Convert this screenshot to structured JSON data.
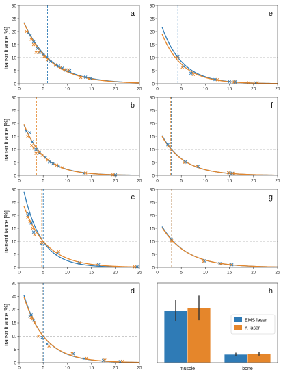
{
  "colors": {
    "ems": "#2f7bb6",
    "k": "#e5862b",
    "ref": "#aaaaaa",
    "err": "#333333"
  },
  "ylabel": "transmittance [%]",
  "chart_data": [
    {
      "panel": "a",
      "type": "scatter",
      "xlim": [
        0,
        25
      ],
      "ylim": [
        0,
        30
      ],
      "xticks": [
        0,
        5,
        10,
        15,
        20,
        25
      ],
      "yticks": [
        0,
        5,
        10,
        15,
        20,
        25,
        30
      ],
      "ref_y": 10,
      "series": [
        {
          "name": "EMS laser",
          "fit": {
            "a": 28,
            "k": 0.176
          },
          "vline": 5.9,
          "points": [
            [
              1.8,
              19.5
            ],
            [
              2.3,
              18.5
            ],
            [
              3,
              16
            ],
            [
              3.8,
              13.5
            ],
            [
              4.3,
              12
            ],
            [
              5,
              11
            ],
            [
              5.8,
              10.2
            ],
            [
              6.5,
              8.5
            ],
            [
              7.6,
              7
            ],
            [
              8.2,
              6.7
            ],
            [
              9,
              6
            ],
            [
              9.7,
              5.2
            ],
            [
              10.5,
              5
            ],
            [
              13.8,
              2.5
            ],
            [
              14.8,
              2
            ]
          ]
        },
        {
          "name": "K-laser",
          "fit": {
            "a": 28,
            "k": 0.182
          },
          "vline": 5.6,
          "points": [
            [
              1.5,
              20
            ],
            [
              2.5,
              17
            ],
            [
              3,
              15
            ],
            [
              3.5,
              12
            ],
            [
              4,
              12
            ],
            [
              5.2,
              10.5
            ],
            [
              6,
              9.2
            ],
            [
              7.5,
              7.2
            ],
            [
              8.5,
              6
            ],
            [
              9.5,
              5.5
            ],
            [
              10.2,
              5.3
            ],
            [
              12.8,
              2.4
            ],
            [
              14.5,
              1.8
            ]
          ]
        }
      ]
    },
    {
      "panel": "e",
      "type": "scatter",
      "xlim": [
        0,
        25
      ],
      "ylim": [
        0,
        30
      ],
      "xticks": [
        0,
        5,
        10,
        15,
        20,
        25
      ],
      "yticks": [
        0,
        5,
        10,
        15,
        20,
        25,
        30
      ],
      "ref_y": 10,
      "series": [
        {
          "name": "EMS laser",
          "fit": {
            "a": 27.5,
            "k": 0.235
          },
          "vline": 4.3,
          "points": [
            [
              4.3,
              10.5
            ],
            [
              5.5,
              6.6
            ],
            [
              7,
              4
            ],
            [
              12,
              1.6
            ],
            [
              15,
              0.8
            ],
            [
              16.2,
              0.7
            ],
            [
              20.5,
              0.3
            ]
          ]
        },
        {
          "name": "K-laser",
          "fit": {
            "a": 24,
            "k": 0.232
          },
          "vline": 3.9,
          "points": [
            [
              4.2,
              10
            ],
            [
              5.2,
              6.3
            ],
            [
              7.5,
              3.5
            ],
            [
              12.5,
              1.5
            ],
            [
              16,
              0.7
            ],
            [
              19,
              0.4
            ],
            [
              20.8,
              0.3
            ]
          ]
        }
      ]
    },
    {
      "panel": "b",
      "type": "scatter",
      "xlim": [
        0,
        25
      ],
      "ylim": [
        0,
        30
      ],
      "xticks": [
        0,
        5,
        10,
        15,
        20,
        25
      ],
      "yticks": [
        0,
        5,
        10,
        15,
        20,
        25,
        30
      ],
      "ref_y": 10,
      "series": [
        {
          "name": "EMS laser",
          "fit": {
            "a": 24.5,
            "k": 0.234
          },
          "vline": 3.9,
          "points": [
            [
              1.5,
              17
            ],
            [
              2.2,
              16.5
            ],
            [
              2.7,
              13
            ],
            [
              3.5,
              10
            ],
            [
              4.2,
              8.6
            ],
            [
              5.5,
              7
            ],
            [
              6.3,
              5.2
            ],
            [
              7,
              4.5
            ],
            [
              8.2,
              3.6
            ],
            [
              13.5,
              0.8
            ],
            [
              20,
              0.2
            ]
          ]
        },
        {
          "name": "K-laser",
          "fit": {
            "a": 25,
            "k": 0.24
          },
          "vline": 3.6,
          "points": [
            [
              1.8,
              15
            ],
            [
              2.6,
              11.5
            ],
            [
              3,
              10.5
            ],
            [
              3.5,
              8.5
            ],
            [
              4.2,
              9
            ],
            [
              4.8,
              7.8
            ],
            [
              6,
              6
            ],
            [
              7.8,
              4
            ],
            [
              9,
              3
            ],
            [
              13.8,
              0.9
            ],
            [
              19.5,
              0.2
            ]
          ]
        }
      ]
    },
    {
      "panel": "f",
      "type": "scatter",
      "xlim": [
        0,
        25
      ],
      "ylim": [
        0,
        30
      ],
      "xticks": [
        0,
        5,
        10,
        15,
        20,
        25
      ],
      "yticks": [
        0,
        5,
        10,
        15,
        20,
        25,
        30
      ],
      "ref_y": 10,
      "series": [
        {
          "name": "EMS laser",
          "fit": {
            "a": 19,
            "k": 0.215
          },
          "vline": 2.9,
          "points": [
            [
              2.2,
              11.8
            ],
            [
              5.8,
              5.2
            ],
            [
              8.5,
              3.5
            ],
            [
              15,
              0.9
            ],
            [
              15.6,
              0.8
            ]
          ]
        },
        {
          "name": "K-laser",
          "fit": {
            "a": 18.5,
            "k": 0.212
          },
          "vline": 2.8,
          "points": [
            [
              2.3,
              11.3
            ],
            [
              5.6,
              5
            ],
            [
              8.3,
              3.6
            ],
            [
              14.8,
              1
            ],
            [
              15.7,
              0.8
            ]
          ]
        }
      ]
    },
    {
      "panel": "c",
      "type": "scatter",
      "xlim": [
        0,
        25
      ],
      "ylim": [
        0,
        30
      ],
      "xticks": [
        0,
        5,
        10,
        15,
        20,
        25
      ],
      "yticks": [
        0,
        5,
        10,
        15,
        20,
        25,
        30
      ],
      "ref_y": 10,
      "series": [
        {
          "name": "EMS laser",
          "fit": {
            "a": 38,
            "k": 0.27
          },
          "vline": 5.0,
          "points": [
            [
              1.8,
              20
            ],
            [
              2,
              20.5
            ],
            [
              2.5,
              17
            ],
            [
              3,
              13.5
            ],
            [
              4.5,
              9
            ],
            [
              8,
              5.5
            ],
            [
              12.5,
              1.7
            ],
            [
              16.5,
              1
            ],
            [
              24.5,
              0.2
            ]
          ]
        },
        {
          "name": "K-laser",
          "fit": {
            "a": 29,
            "k": 0.213
          },
          "vline": 4.7,
          "points": [
            [
              1.8,
              19.2
            ],
            [
              2.2,
              17.5
            ],
            [
              2.8,
              15
            ],
            [
              3.2,
              12.5
            ],
            [
              4.7,
              9.5
            ],
            [
              8.2,
              6
            ],
            [
              12.6,
              1.8
            ],
            [
              16.2,
              1
            ],
            [
              24,
              0.2
            ]
          ]
        }
      ]
    },
    {
      "panel": "g",
      "type": "scatter",
      "xlim": [
        0,
        25
      ],
      "ylim": [
        0,
        30
      ],
      "xticks": [
        0,
        5,
        10,
        15,
        20,
        25
      ],
      "yticks": [
        0,
        5,
        10,
        15,
        20,
        25,
        30
      ],
      "ref_y": 10,
      "series": [
        {
          "name": "EMS laser",
          "fit": {
            "a": 19,
            "k": 0.193
          },
          "vline": 3.0,
          "points": [
            [
              2.9,
              10.8
            ],
            [
              9.8,
              2.5
            ],
            [
              13,
              1.5
            ],
            [
              15.5,
              1
            ]
          ]
        },
        {
          "name": "K-laser",
          "fit": {
            "a": 18.5,
            "k": 0.19
          },
          "vline": 3.0,
          "points": [
            [
              3,
              10.2
            ],
            [
              9.6,
              2.3
            ],
            [
              13.2,
              1.4
            ],
            [
              15.3,
              1
            ]
          ]
        }
      ]
    },
    {
      "panel": "d",
      "type": "scatter",
      "xlim": [
        0,
        25
      ],
      "ylim": [
        0,
        30
      ],
      "xticks": [
        0,
        5,
        10,
        15,
        20,
        25
      ],
      "yticks": [
        0,
        5,
        10,
        15,
        20,
        25,
        30
      ],
      "ref_y": 10,
      "series": [
        {
          "name": "EMS laser",
          "fit": {
            "a": 32,
            "k": 0.232
          },
          "vline": 5.0,
          "points": [
            [
              2.2,
              17.5
            ],
            [
              2.5,
              18
            ],
            [
              3,
              16
            ],
            [
              4.8,
              9.5
            ],
            [
              5.8,
              7
            ],
            [
              11.2,
              3.3
            ],
            [
              13.5,
              1.5
            ],
            [
              17.5,
              0.8
            ],
            [
              21,
              0.4
            ]
          ]
        },
        {
          "name": "K-laser",
          "fit": {
            "a": 31,
            "k": 0.226
          },
          "vline": 4.8,
          "points": [
            [
              2.5,
              17
            ],
            [
              2.8,
              16.5
            ],
            [
              3.2,
              15
            ],
            [
              4,
              10
            ],
            [
              6.2,
              6.3
            ],
            [
              11,
              3.5
            ],
            [
              14,
              1.6
            ],
            [
              17.8,
              0.9
            ],
            [
              21.5,
              0.5
            ]
          ]
        }
      ]
    },
    {
      "panel": "h",
      "type": "bar",
      "categories": [
        "muscle",
        "bone"
      ],
      "series": [
        {
          "name": "EMS laser",
          "values": [
            1.58,
            0.25
          ],
          "errors": [
            0.32,
            0.05
          ]
        },
        {
          "name": "K-laser",
          "values": [
            1.65,
            0.27
          ],
          "errors": [
            0.37,
            0.06
          ]
        }
      ],
      "legend": "right"
    }
  ]
}
